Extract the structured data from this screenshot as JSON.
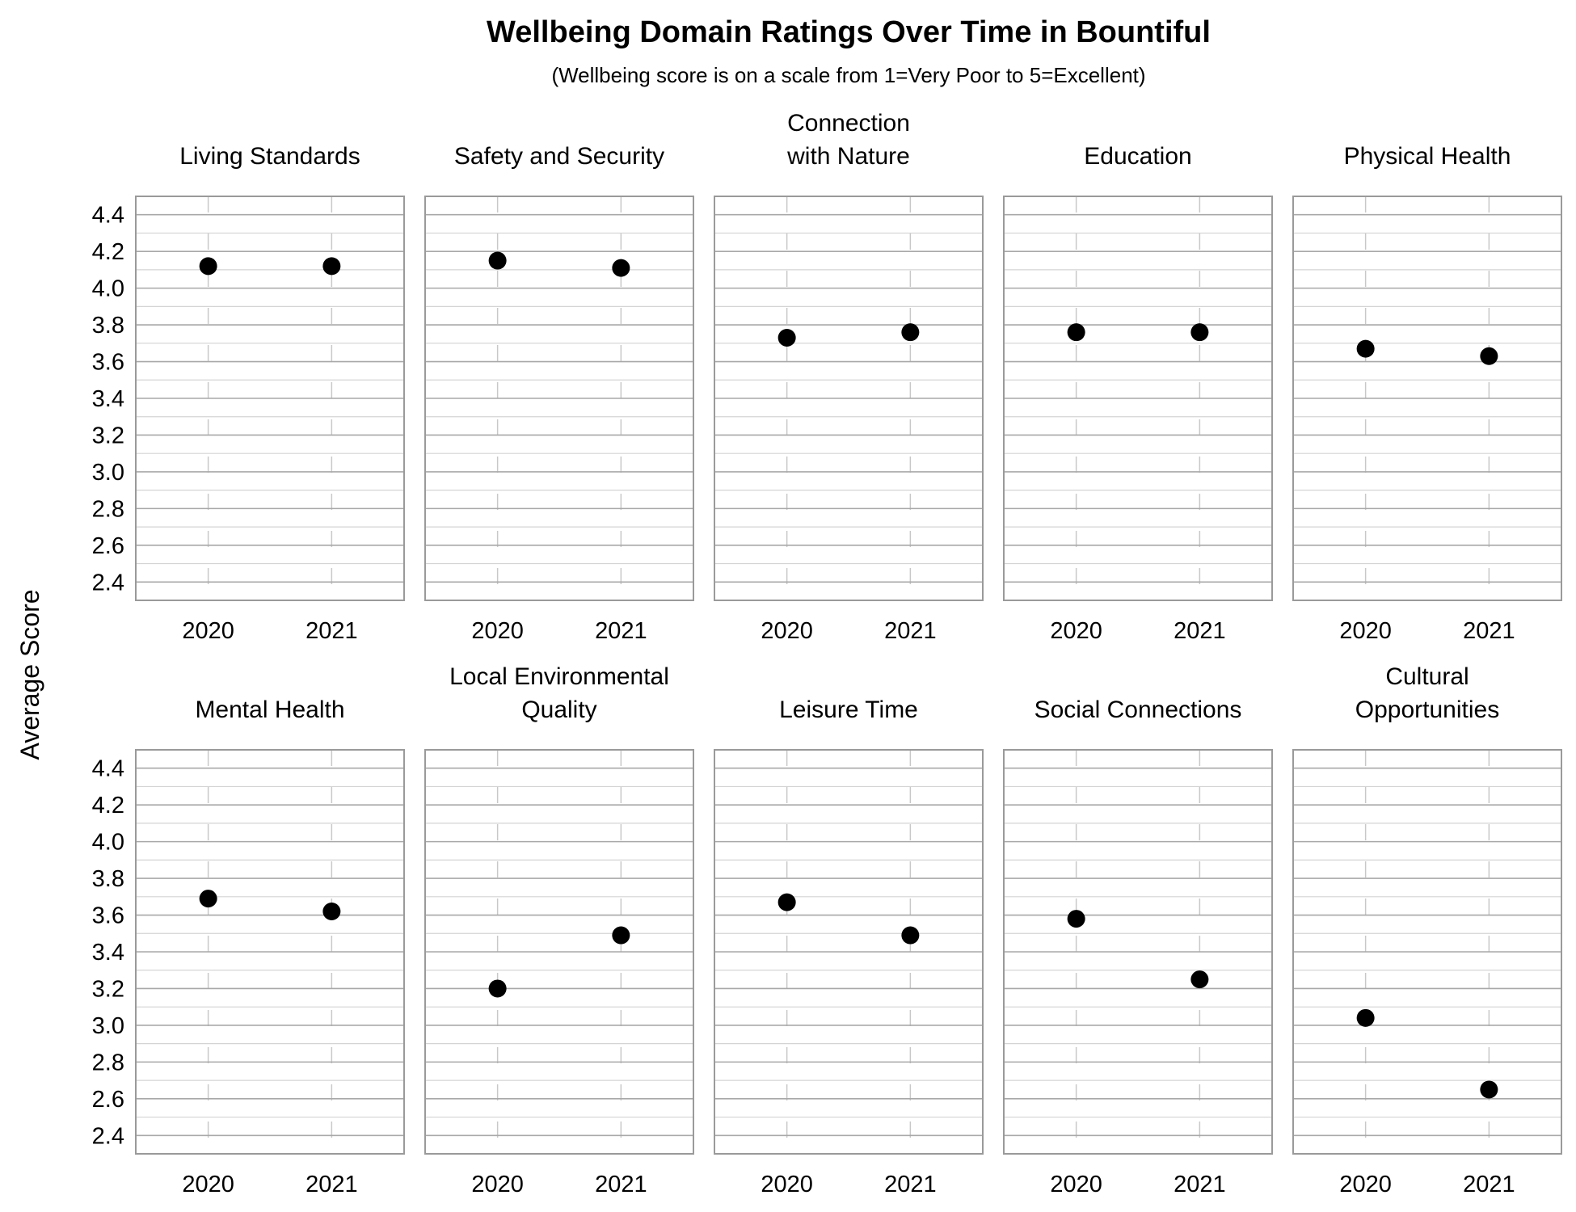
{
  "chart_data": {
    "type": "scatter",
    "title": "Wellbeing Domain Ratings Over Time in Bountiful",
    "subtitle": "(Wellbeing score is on a scale from 1=Very Poor to 5=Excellent)",
    "ylabel": "Average Score",
    "xlabel": "",
    "ylim": [
      2.3,
      4.5
    ],
    "yticks": [
      "2.4",
      "2.6",
      "2.8",
      "3.0",
      "3.2",
      "3.4",
      "3.6",
      "3.8",
      "4.0",
      "4.2",
      "4.4"
    ],
    "categories": [
      "2020",
      "2021"
    ],
    "grid": true,
    "point_color": "#000000",
    "panels": [
      {
        "title": [
          "Living Standards"
        ],
        "values": [
          4.12,
          4.12
        ]
      },
      {
        "title": [
          "Safety and Security"
        ],
        "values": [
          4.15,
          4.11
        ]
      },
      {
        "title": [
          "Connection",
          "with Nature"
        ],
        "values": [
          3.73,
          3.76
        ]
      },
      {
        "title": [
          "Education"
        ],
        "values": [
          3.76,
          3.76
        ]
      },
      {
        "title": [
          "Physical Health"
        ],
        "values": [
          3.67,
          3.63
        ]
      },
      {
        "title": [
          "Mental Health"
        ],
        "values": [
          3.69,
          3.62
        ]
      },
      {
        "title": [
          "Local Environmental",
          "Quality"
        ],
        "values": [
          3.2,
          3.49
        ]
      },
      {
        "title": [
          "Leisure Time"
        ],
        "values": [
          3.67,
          3.49
        ]
      },
      {
        "title": [
          "Social Connections"
        ],
        "values": [
          3.58,
          3.25
        ]
      },
      {
        "title": [
          "Cultural",
          "Opportunities"
        ],
        "values": [
          3.04,
          2.65
        ]
      }
    ]
  }
}
